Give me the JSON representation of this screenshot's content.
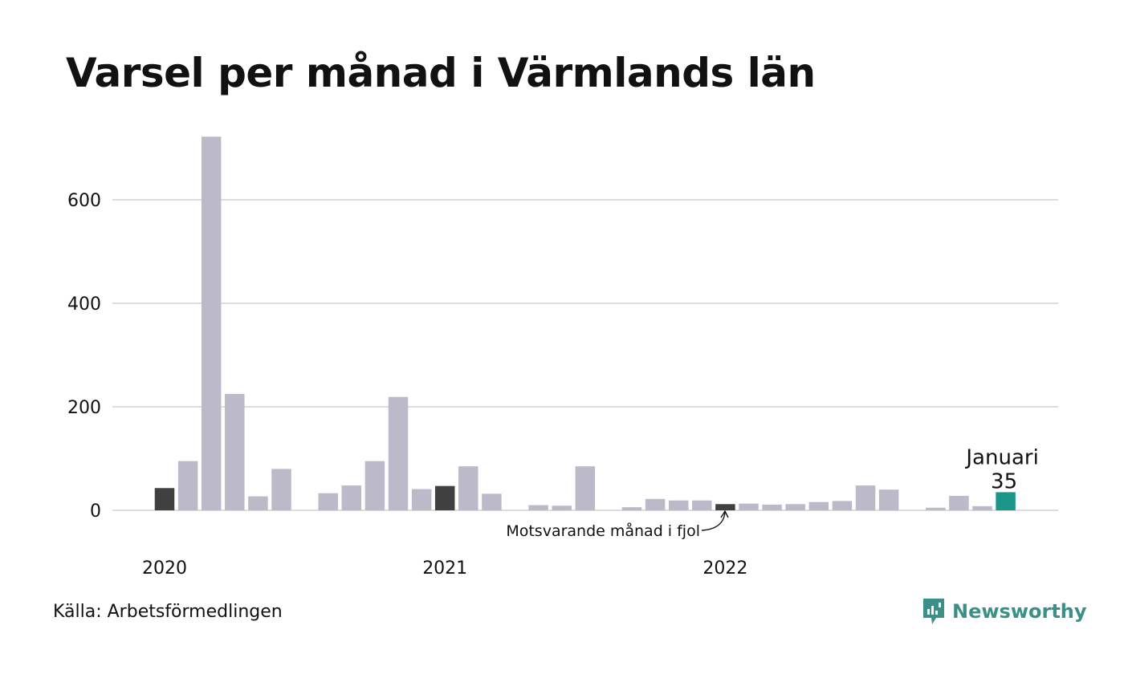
{
  "title": "Varsel per månad i Värmlands län",
  "source": "Källa: Arbetsförmedlingen",
  "brand": "Newsworthy",
  "colors": {
    "bar": "#bcbac8",
    "comparison": "#404040",
    "highlight": "#1a9688",
    "grid": "#dddddd",
    "brand": "#3a8f86"
  },
  "chart_data": {
    "type": "bar",
    "title": "Varsel per månad i Värmlands län",
    "xlabel": "",
    "ylabel": "",
    "ylim": [
      0,
      720
    ],
    "yticks": [
      0,
      200,
      400,
      600
    ],
    "grid": true,
    "x_tick_labels": [
      "2020",
      "2021",
      "2022"
    ],
    "categories": [
      "2020-01",
      "2020-02",
      "2020-03",
      "2020-04",
      "2020-05",
      "2020-06",
      "2020-07",
      "2020-08",
      "2020-09",
      "2020-10",
      "2020-11",
      "2020-12",
      "2021-01",
      "2021-02",
      "2021-03",
      "2021-04",
      "2021-05",
      "2021-06",
      "2021-07",
      "2021-08",
      "2021-09",
      "2021-10",
      "2021-11",
      "2021-12",
      "2022-01",
      "2022-02",
      "2022-03",
      "2022-04",
      "2022-05",
      "2022-06",
      "2022-07",
      "2022-08",
      "2022-09",
      "2022-10",
      "2022-11",
      "2022-12",
      "2023-01"
    ],
    "values": [
      43,
      95,
      722,
      225,
      27,
      80,
      0,
      33,
      48,
      95,
      219,
      41,
      47,
      85,
      32,
      0,
      10,
      9,
      85,
      0,
      6,
      22,
      19,
      19,
      12,
      13,
      11,
      12,
      16,
      18,
      48,
      40,
      0,
      5,
      28,
      8,
      35
    ],
    "comparison_indices": [
      0,
      12,
      24
    ],
    "highlight_index": 36,
    "annotations": {
      "comparison": "Motsvarande månad i fjol",
      "highlight_label": "Januari",
      "highlight_value": "35"
    }
  }
}
